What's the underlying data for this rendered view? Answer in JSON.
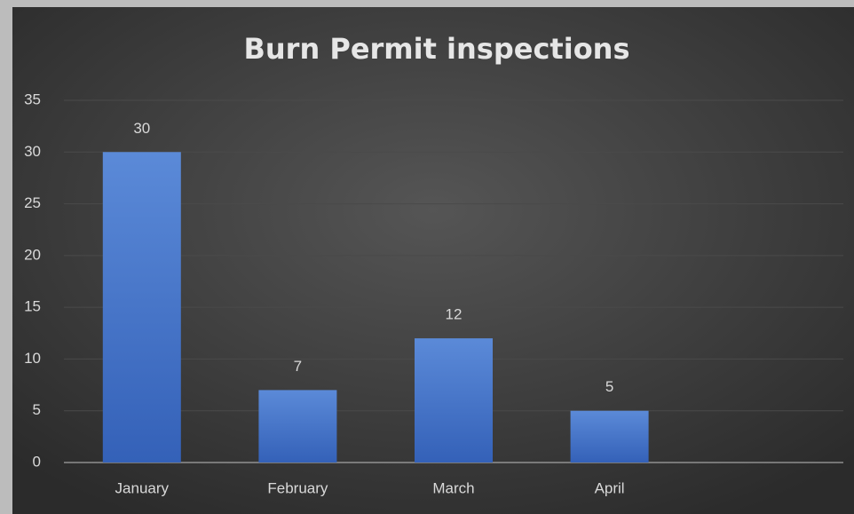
{
  "chart_data": {
    "type": "bar",
    "title": "Burn Permit inspections",
    "categories": [
      "January",
      "February",
      "March",
      "April",
      null
    ],
    "values": [
      30,
      7,
      12,
      5,
      null
    ],
    "color": "#4472c4",
    "ylim": [
      0,
      35
    ],
    "yticks": [
      0,
      5,
      10,
      15,
      20,
      25,
      30,
      35
    ],
    "grid": true
  }
}
